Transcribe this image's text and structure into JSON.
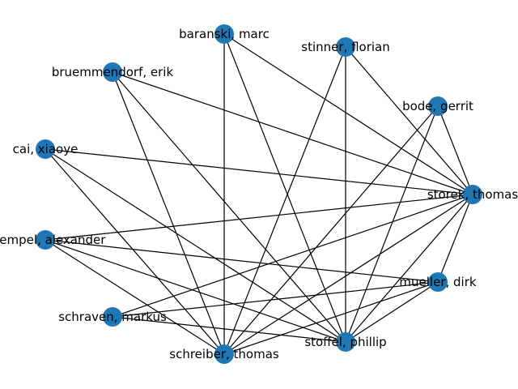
{
  "graph": {
    "node_color": "#1f77b4",
    "edge_color": "#000000",
    "nodes": [
      {
        "id": "baranski",
        "label": "baranski, marc"
      },
      {
        "id": "stinner",
        "label": "stinner, florian"
      },
      {
        "id": "bruemmendorf",
        "label": "bruemmendorf, erik"
      },
      {
        "id": "bode",
        "label": "bode, gerrit"
      },
      {
        "id": "cai",
        "label": "cai, xiaoye"
      },
      {
        "id": "storek",
        "label": "storek, thomas"
      },
      {
        "id": "kuempel",
        "label": "kuempel, alexander"
      },
      {
        "id": "mueller",
        "label": "mueller, dirk"
      },
      {
        "id": "schraven",
        "label": "schraven, markus"
      },
      {
        "id": "stoffel",
        "label": "stoffel, phillip"
      },
      {
        "id": "schreiber",
        "label": "schreiber, thomas"
      }
    ],
    "edges": [
      [
        "baranski",
        "storek"
      ],
      [
        "baranski",
        "stoffel"
      ],
      [
        "baranski",
        "schreiber"
      ],
      [
        "stinner",
        "storek"
      ],
      [
        "stinner",
        "stoffel"
      ],
      [
        "stinner",
        "schreiber"
      ],
      [
        "bruemmendorf",
        "storek"
      ],
      [
        "bruemmendorf",
        "stoffel"
      ],
      [
        "bruemmendorf",
        "schreiber"
      ],
      [
        "bode",
        "storek"
      ],
      [
        "bode",
        "stoffel"
      ],
      [
        "bode",
        "schreiber"
      ],
      [
        "cai",
        "storek"
      ],
      [
        "cai",
        "stoffel"
      ],
      [
        "cai",
        "schreiber"
      ],
      [
        "storek",
        "kuempel"
      ],
      [
        "storek",
        "mueller"
      ],
      [
        "storek",
        "schraven"
      ],
      [
        "storek",
        "stoffel"
      ],
      [
        "storek",
        "schreiber"
      ],
      [
        "kuempel",
        "mueller"
      ],
      [
        "kuempel",
        "stoffel"
      ],
      [
        "kuempel",
        "schreiber"
      ],
      [
        "mueller",
        "schraven"
      ],
      [
        "mueller",
        "stoffel"
      ],
      [
        "mueller",
        "schreiber"
      ],
      [
        "schraven",
        "stoffel"
      ]
    ]
  }
}
